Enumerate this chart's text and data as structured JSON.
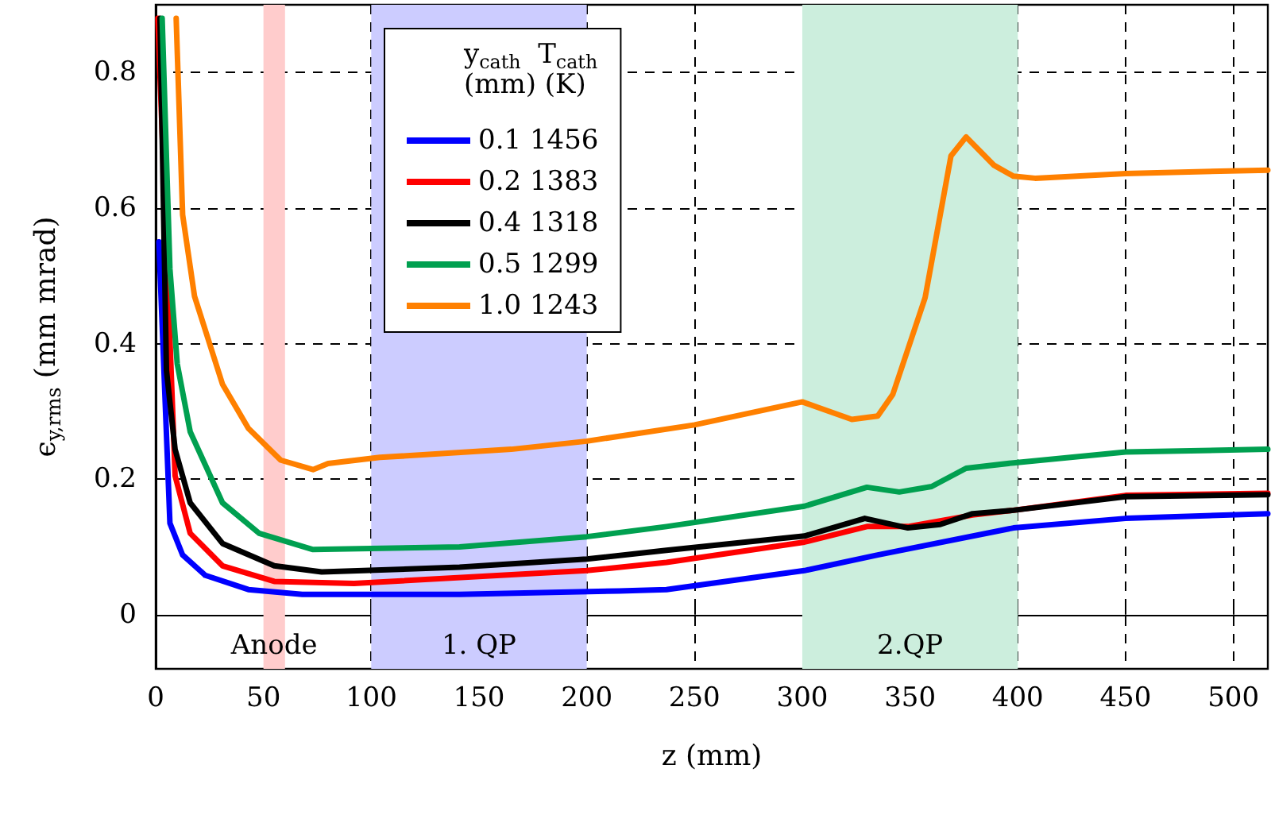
{
  "chart_data": {
    "type": "line",
    "xlabel": "z (mm)",
    "ylabel": "ϵ$_{y,rms}$ (mm mrad)",
    "legend_title": "y$_{cath}$  T$_{cath}$\n(mm) (K)",
    "xlim": [
      0,
      516
    ],
    "ylim": [
      -0.08,
      0.9
    ],
    "xticks": [
      0,
      50,
      100,
      150,
      200,
      250,
      300,
      350,
      400,
      450,
      500
    ],
    "yticks": [
      0,
      0.2,
      0.4,
      0.6,
      0.8
    ],
    "grid": true,
    "legend": "top",
    "marker": "none",
    "line_style": "solid",
    "bands": [
      {
        "axis": "x",
        "from": 50,
        "to": 60,
        "label": "Anode",
        "color": "#ffcccc"
      },
      {
        "axis": "x",
        "from": 100,
        "to": 200,
        "label": "1. QP",
        "color": "#ccccff"
      },
      {
        "axis": "x",
        "from": 300,
        "to": 400,
        "label": "2.QP",
        "color": "#cceedd"
      }
    ],
    "series": [
      {
        "name": "0.1 1456",
        "color": "#0000ff",
        "x": [
          1.5,
          6.6,
          12.5,
          23,
          43,
          68,
          141,
          215,
          237,
          301,
          335,
          398,
          450,
          516
        ],
        "values": [
          0.55,
          0.135,
          0.088,
          0.058,
          0.037,
          0.03,
          0.03,
          0.035,
          0.037,
          0.065,
          0.088,
          0.128,
          0.142,
          0.149
        ]
      },
      {
        "name": "0.2 1383",
        "color": "#ff0000",
        "x": [
          1,
          9,
          16,
          31,
          55,
          92,
          200,
          237,
          301,
          330,
          349,
          379,
          398,
          450,
          516
        ],
        "values": [
          0.88,
          0.205,
          0.12,
          0.072,
          0.049,
          0.046,
          0.065,
          0.077,
          0.107,
          0.13,
          0.13,
          0.147,
          0.154,
          0.176,
          0.179
        ]
      },
      {
        "name": "0.4 1318",
        "color": "#000000",
        "x": [
          2,
          5,
          9,
          16,
          31,
          55,
          77,
          141,
          200,
          237,
          301,
          329,
          349,
          364,
          379,
          398,
          450,
          516
        ],
        "values": [
          0.88,
          0.36,
          0.244,
          0.165,
          0.105,
          0.072,
          0.063,
          0.07,
          0.082,
          0.095,
          0.116,
          0.142,
          0.128,
          0.133,
          0.149,
          0.154,
          0.174,
          0.177
        ]
      },
      {
        "name": "0.5 1299",
        "color": "#00a050",
        "x": [
          3,
          6.6,
          10,
          16,
          31,
          48,
          73,
          141,
          200,
          237,
          301,
          330,
          345,
          360,
          376,
          398,
          450,
          516
        ],
        "values": [
          0.88,
          0.51,
          0.37,
          0.27,
          0.165,
          0.12,
          0.096,
          0.1,
          0.115,
          0.13,
          0.16,
          0.188,
          0.181,
          0.189,
          0.216,
          0.224,
          0.24,
          0.244
        ]
      },
      {
        "name": "1.0 1243",
        "color": "#ff8000",
        "x": [
          9.5,
          12.5,
          18,
          31,
          43,
          58,
          73,
          80,
          104,
          165,
          200,
          250,
          300,
          323,
          335,
          342,
          357,
          369,
          376,
          389,
          398,
          408,
          450,
          516
        ],
        "values": [
          0.88,
          0.59,
          0.47,
          0.34,
          0.275,
          0.228,
          0.214,
          0.223,
          0.232,
          0.244,
          0.256,
          0.28,
          0.314,
          0.288,
          0.293,
          0.325,
          0.468,
          0.677,
          0.705,
          0.663,
          0.647,
          0.644,
          0.651,
          0.656
        ]
      }
    ]
  }
}
